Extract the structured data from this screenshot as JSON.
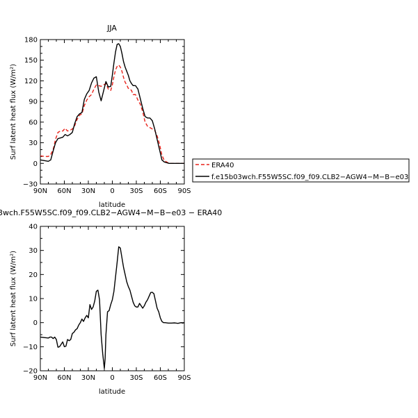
{
  "chart_data": [
    {
      "type": "line",
      "title": "JJA",
      "xlabel": "latitude",
      "ylabel": "Surf latent heat flux (W/m²)",
      "xlim": [
        90,
        -90
      ],
      "ylim": [
        -30,
        180
      ],
      "xticks": [
        90,
        60,
        30,
        0,
        -30,
        -60,
        -90
      ],
      "xtick_labels": [
        "90N",
        "60N",
        "30N",
        "0",
        "30S",
        "60S",
        "90S"
      ],
      "yticks": [
        -30,
        0,
        30,
        60,
        90,
        120,
        150,
        180
      ],
      "ytick_labels": [
        "−30",
        "0",
        "30",
        "60",
        "90",
        "120",
        "150",
        "180"
      ],
      "legend_position": "right",
      "series": [
        {
          "name": "ERA40",
          "color": "#e8221a",
          "dash": "dashed",
          "x": [
            90,
            85,
            80,
            77,
            74,
            71,
            68,
            65,
            62,
            59,
            56,
            53,
            50,
            47,
            44,
            41,
            38,
            35,
            32,
            29,
            26,
            23,
            20,
            17,
            14,
            11,
            8,
            5,
            2,
            0,
            -2,
            -4,
            -6,
            -8,
            -10,
            -12,
            -14,
            -16,
            -18,
            -20,
            -22,
            -24,
            -26,
            -29,
            -32,
            -35,
            -38,
            -41,
            -44,
            -47,
            -50,
            -53,
            -56,
            -59,
            -62,
            -65,
            -68,
            -71,
            -75,
            -80,
            -85,
            -90
          ],
          "y": [
            11,
            10,
            10,
            13,
            20,
            35,
            45,
            47,
            47,
            51,
            47,
            48,
            50,
            55,
            64,
            70,
            72,
            84,
            92,
            97,
            100,
            108,
            114,
            113,
            112,
            114,
            116,
            108,
            106,
            114,
            126,
            136,
            141,
            143,
            140,
            134,
            125,
            118,
            114,
            109,
            108,
            106,
            100,
            100,
            92,
            86,
            75,
            60,
            54,
            52,
            50,
            48,
            40,
            28,
            12,
            4,
            2,
            0,
            0,
            0,
            0,
            0
          ]
        },
        {
          "name": "f.e15b03wch.F55W5SC.f09_f09.CLB2−AGW4−M−B−e03",
          "color": "#000000",
          "dash": "solid",
          "x": [
            90,
            85,
            80,
            77,
            74,
            71,
            68,
            65,
            62,
            59,
            56,
            53,
            50,
            47,
            44,
            41,
            38,
            35,
            32,
            29,
            26,
            23,
            20,
            17,
            14,
            11,
            8,
            5,
            2,
            0,
            -2,
            -4,
            -6,
            -8,
            -10,
            -12,
            -14,
            -16,
            -18,
            -20,
            -22,
            -24,
            -26,
            -29,
            -32,
            -35,
            -38,
            -41,
            -44,
            -47,
            -50,
            -53,
            -56,
            -59,
            -62,
            -65,
            -68,
            -71,
            -75,
            -80,
            -85,
            -90
          ],
          "y": [
            5,
            4,
            3,
            5,
            18,
            30,
            36,
            37,
            38,
            42,
            40,
            42,
            45,
            58,
            68,
            72,
            74,
            93,
            101,
            106,
            117,
            124,
            126,
            104,
            91,
            105,
            119,
            111,
            112,
            128,
            146,
            162,
            173,
            174,
            170,
            160,
            148,
            140,
            134,
            128,
            120,
            116,
            113,
            113,
            108,
            94,
            80,
            68,
            66,
            66,
            62,
            50,
            35,
            20,
            5,
            2,
            1,
            0,
            0,
            0,
            0,
            0
          ]
        }
      ]
    },
    {
      "type": "line",
      "title": "3wch.F55W5SC.f09_f09.CLB2−AGW4−M−B−e03 − ERA40",
      "xlabel": "latitude",
      "ylabel": "Surf latent heat flux (W/m²)",
      "xlim": [
        90,
        -90
      ],
      "ylim": [
        -20,
        40
      ],
      "xticks": [
        90,
        60,
        30,
        0,
        -30,
        -60,
        -90
      ],
      "xtick_labels": [
        "90N",
        "60N",
        "30N",
        "0",
        "30S",
        "60S",
        "90S"
      ],
      "yticks": [
        -20,
        -10,
        0,
        10,
        20,
        30,
        40
      ],
      "ytick_labels": [
        "−20",
        "−10",
        "0",
        "10",
        "20",
        "30",
        "40"
      ],
      "series": [
        {
          "color": "#000000",
          "dash": "solid",
          "x": [
            90,
            85,
            80,
            78,
            76,
            74,
            72,
            70,
            68,
            66,
            64,
            62,
            60,
            58,
            56,
            54,
            52,
            50,
            48,
            46,
            44,
            42,
            40,
            38,
            36,
            34,
            32,
            30,
            28,
            26,
            24,
            22,
            20,
            18,
            16,
            14,
            12,
            10,
            9,
            8,
            6,
            4,
            2,
            0,
            -2,
            -4,
            -6,
            -8,
            -10,
            -12,
            -14,
            -16,
            -18,
            -20,
            -22,
            -24,
            -26,
            -28,
            -30,
            -32,
            -34,
            -36,
            -38,
            -40,
            -42,
            -44,
            -46,
            -48,
            -50,
            -52,
            -54,
            -56,
            -58,
            -60,
            -62,
            -64,
            -66,
            -70,
            -74,
            -78,
            -82,
            -86,
            -88,
            -90
          ],
          "y": [
            -6,
            -6.2,
            -6.4,
            -6,
            -6,
            -6.6,
            -6,
            -7,
            -10.2,
            -10,
            -9,
            -8,
            -10,
            -9.8,
            -7,
            -7.5,
            -7,
            -4.5,
            -4,
            -3,
            -2.5,
            -1,
            0,
            1.5,
            0.5,
            2,
            3,
            2,
            7.5,
            5.5,
            6.5,
            9,
            13,
            13.5,
            9.5,
            -5,
            -13,
            -19,
            -15,
            -5,
            4.5,
            5,
            7.5,
            9.5,
            13,
            19,
            25,
            31.5,
            31,
            27,
            23,
            20,
            17,
            15,
            13.5,
            11,
            8.5,
            7,
            6.5,
            6.5,
            8,
            7,
            6,
            7,
            8.5,
            9.5,
            11,
            12.5,
            12.6,
            12,
            9,
            6,
            4.5,
            2,
            0.5,
            0,
            0,
            -0.2,
            -0.2,
            -0.1,
            -0.3,
            0,
            -0.2,
            0
          ]
        }
      ]
    }
  ]
}
